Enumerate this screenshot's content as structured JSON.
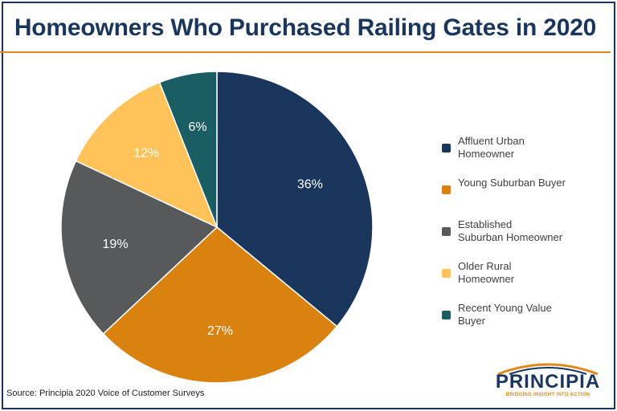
{
  "title": "Homeowners Who Purchased Railing Gates in 2020",
  "source": "Source: Principia 2020 Voice of Customer Surveys",
  "logo": {
    "name": "PRINCIPIA",
    "tagline": "BRIDGING INSIGHT INTO ACTION"
  },
  "colors": {
    "title": "#1b365d",
    "rule": "#e08a1e",
    "border": "#1b365d"
  },
  "chart_data": {
    "type": "pie",
    "title": "Homeowners Who Purchased Railing Gates in 2020",
    "legend_position": "right",
    "slices": [
      {
        "label": "Affluent Urban\nHomeowner",
        "value": 36,
        "display": "36%",
        "color": "#1b365d"
      },
      {
        "label": "Young Suburban Buyer",
        "value": 27,
        "display": "27%",
        "color": "#d9820f"
      },
      {
        "label": "Established\nSuburban Homeowner",
        "value": 19,
        "display": "19%",
        "color": "#58595b"
      },
      {
        "label": "Older Rural\nHomeowner",
        "value": 12,
        "display": "12%",
        "color": "#ffc35a"
      },
      {
        "label": "Recent Young Value\nBuyer",
        "value": 6,
        "display": "6%",
        "color": "#1a5e63"
      }
    ]
  }
}
